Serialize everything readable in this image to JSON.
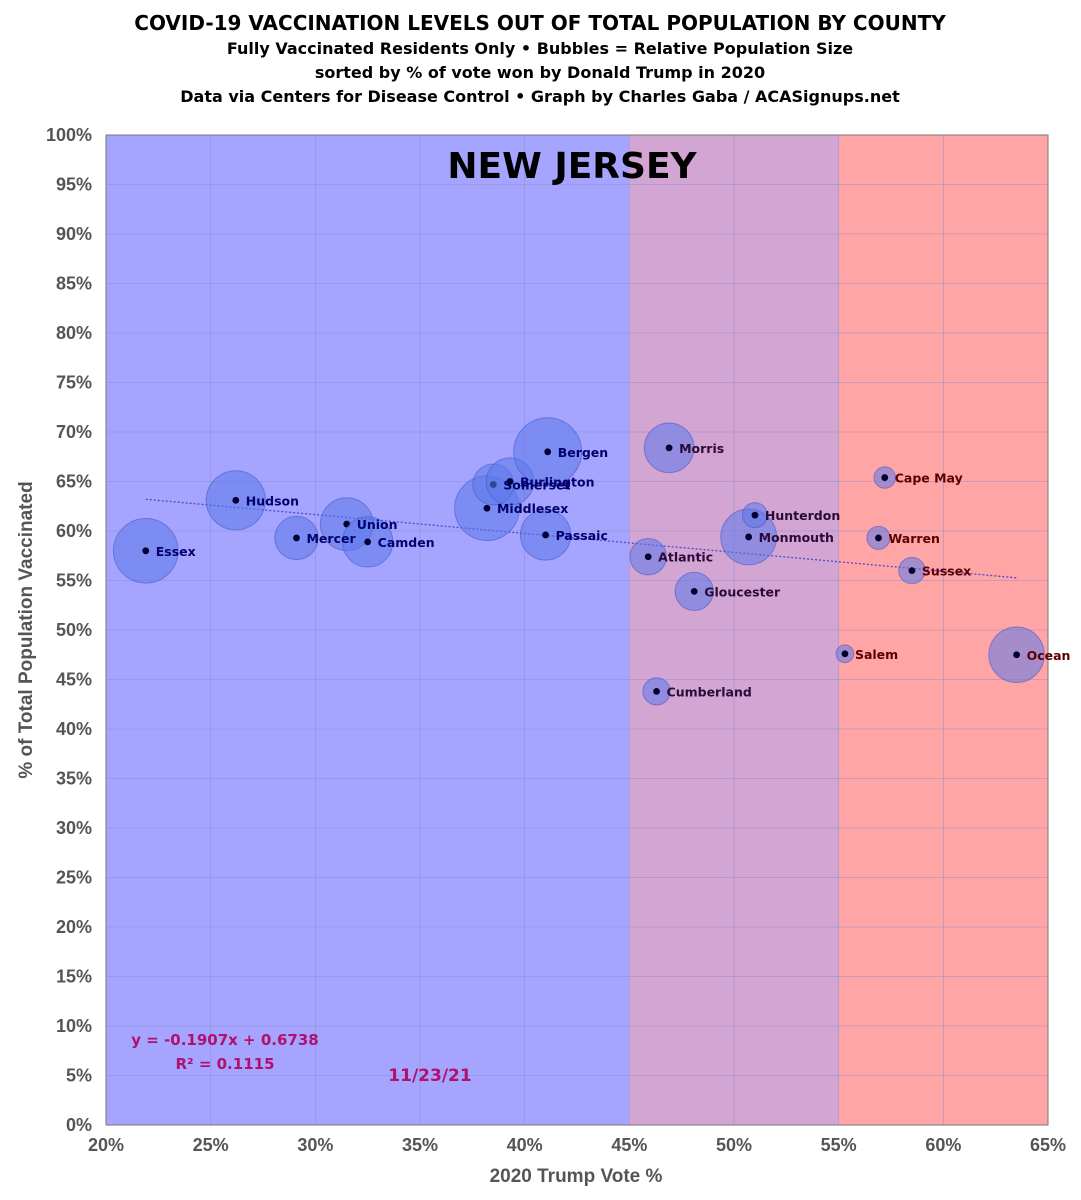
{
  "header": {
    "title": "COVID-19 VACCINATION LEVELS OUT OF TOTAL POPULATION BY COUNTY",
    "subtitle1": "Fully Vaccinated Residents Only • Bubbles = Relative Population Size",
    "subtitle2": "sorted by % of vote won by Donald Trump in 2020",
    "subtitle3": "Data via Centers for Disease Control • Graph by Charles Gaba / ACASignups.net"
  },
  "chart_data": {
    "type": "scatter",
    "subtype": "bubble",
    "state_title": "NEW JERSEY",
    "xlabel": "2020 Trump Vote %",
    "ylabel": "% of Total Population Vaccinated",
    "xlim": [
      0.2,
      0.65
    ],
    "ylim": [
      0.0,
      1.0
    ],
    "x_ticks": [
      "20%",
      "25%",
      "30%",
      "35%",
      "40%",
      "45%",
      "50%",
      "55%",
      "60%",
      "65%"
    ],
    "y_ticks": [
      "0%",
      "5%",
      "10%",
      "15%",
      "20%",
      "25%",
      "30%",
      "35%",
      "40%",
      "45%",
      "50%",
      "55%",
      "60%",
      "65%",
      "70%",
      "75%",
      "80%",
      "85%",
      "90%",
      "95%",
      "100%"
    ],
    "grid": true,
    "background_bands": [
      {
        "from": 0.2,
        "to": 0.45,
        "color": "#a5a5ff"
      },
      {
        "from": 0.45,
        "to": 0.55,
        "color": "#d3a5d3"
      },
      {
        "from": 0.55,
        "to": 0.65,
        "color": "#ffa5a5"
      }
    ],
    "points": [
      {
        "name": "Essex",
        "x": 0.219,
        "y": 0.58,
        "population": 863728
      },
      {
        "name": "Hudson",
        "x": 0.262,
        "y": 0.631,
        "population": 724854
      },
      {
        "name": "Mercer",
        "x": 0.291,
        "y": 0.593,
        "population": 387340
      },
      {
        "name": "Union",
        "x": 0.315,
        "y": 0.607,
        "population": 575345
      },
      {
        "name": "Camden",
        "x": 0.325,
        "y": 0.589,
        "population": 523485
      },
      {
        "name": "Middlesex",
        "x": 0.382,
        "y": 0.623,
        "population": 863162
      },
      {
        "name": "Somerset",
        "x": 0.385,
        "y": 0.647,
        "population": 345361
      },
      {
        "name": "Burlington",
        "x": 0.393,
        "y": 0.65,
        "population": 461860
      },
      {
        "name": "Bergen",
        "x": 0.411,
        "y": 0.68,
        "population": 955732
      },
      {
        "name": "Passaic",
        "x": 0.41,
        "y": 0.596,
        "population": 524118
      },
      {
        "name": "Morris",
        "x": 0.469,
        "y": 0.684,
        "population": 509285
      },
      {
        "name": "Atlantic",
        "x": 0.459,
        "y": 0.574,
        "population": 274534
      },
      {
        "name": "Cumberland",
        "x": 0.463,
        "y": 0.438,
        "population": 154152
      },
      {
        "name": "Gloucester",
        "x": 0.481,
        "y": 0.539,
        "population": 302294
      },
      {
        "name": "Monmouth",
        "x": 0.507,
        "y": 0.594,
        "population": 643615
      },
      {
        "name": "Hunterdon",
        "x": 0.51,
        "y": 0.616,
        "population": 128947
      },
      {
        "name": "Salem",
        "x": 0.553,
        "y": 0.476,
        "population": 64837
      },
      {
        "name": "Cape May",
        "x": 0.572,
        "y": 0.654,
        "population": 95263
      },
      {
        "name": "Warren",
        "x": 0.569,
        "y": 0.593,
        "population": 109632
      },
      {
        "name": "Sussex",
        "x": 0.585,
        "y": 0.56,
        "population": 144221
      },
      {
        "name": "Ocean",
        "x": 0.635,
        "y": 0.475,
        "population": 637229
      }
    ],
    "trendline": {
      "slope": -0.1907,
      "intercept": 0.6738,
      "x_range": [
        0.219,
        0.635
      ],
      "equation_label": "y = -0.1907x + 0.6738",
      "r2_label": "R² = 0.1115"
    },
    "date_label": "11/23/21"
  },
  "colors": {
    "blue_band": "#a5a5ff",
    "purple_band": "#d3a5d3",
    "red_band": "#ffa5a5",
    "bubble_fill": "#5b78ea",
    "bubble_stroke": "#3f55c8",
    "dot": "#000033",
    "label_blue_zone": "#00006e",
    "label_purple_zone": "#2a0a3a",
    "label_red_zone": "#5a0000",
    "annotation": "#b0106e",
    "trendline": "#4a4ad0",
    "grid": "#8a8acc"
  }
}
